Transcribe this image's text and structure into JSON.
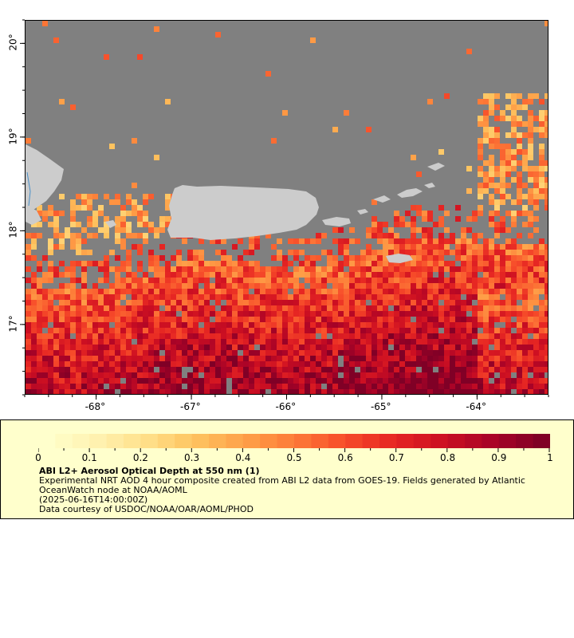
{
  "map": {
    "lon_range": [
      -68.75,
      -63.25
    ],
    "lat_range": [
      16.25,
      20.25
    ],
    "lon_ticks": [
      {
        "value": -68,
        "label": "-68°"
      },
      {
        "value": -67,
        "label": "-67°"
      },
      {
        "value": -66,
        "label": "-66°"
      },
      {
        "value": -65,
        "label": "-65°"
      },
      {
        "value": -64,
        "label": "-64°"
      }
    ],
    "lat_ticks": [
      {
        "value": 17,
        "label": "17°"
      },
      {
        "value": 18,
        "label": "18°"
      },
      {
        "value": 19,
        "label": "19°"
      },
      {
        "value": 20,
        "label": "20°"
      }
    ],
    "colors": {
      "no_data": "#808080",
      "land": "#cccccc",
      "water_line": "#4a90c8"
    }
  },
  "colorbar": {
    "min": 0,
    "max": 1,
    "tick_labels": [
      "0",
      "0.1",
      "0.2",
      "0.3",
      "0.4",
      "0.5",
      "0.6",
      "0.7",
      "0.8",
      "0.9",
      "1"
    ],
    "color_stops": [
      "#ffffcc",
      "#fff2b0",
      "#ffe08a",
      "#fec35f",
      "#fea048",
      "#fd7b38",
      "#f74d2a",
      "#e62623",
      "#cc0f22",
      "#a90327",
      "#800026"
    ]
  },
  "legend": {
    "title": "ABI L2+ Aerosol Optical Depth at 550 nm (1)",
    "description": "Experimental NRT AOD 4 hour composite created from ABI L2 data from GOES-19. Fields generated by Atlantic OceanWatch node at NOAA/AOML",
    "timestamp": "(2025-06-16T14:00:00Z)",
    "credit": "Data courtesy of USDOC/NOAA/OAR/AOML/PHOD"
  }
}
